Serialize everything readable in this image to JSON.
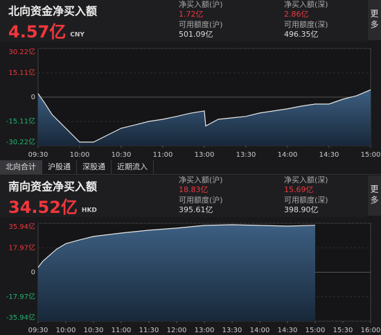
{
  "chart_data": [
    {
      "type": "line",
      "title": "北向资金净买入额",
      "amount": "4.57亿",
      "currency": "CNY",
      "more": "更多",
      "stats": [
        {
          "label": "净买入额(沪)",
          "value": "1.72亿"
        },
        {
          "label": "可用额度(沪)",
          "value": "501.09亿"
        },
        {
          "label": "净买入额(深)",
          "value": "2.86亿"
        },
        {
          "label": "可用额度(深)",
          "value": "496.35亿"
        }
      ],
      "x": [
        0,
        5,
        10,
        20,
        30,
        40,
        50,
        60,
        70,
        80,
        90,
        100,
        110,
        120,
        121,
        130,
        140,
        150,
        160,
        170,
        180,
        190,
        200,
        210,
        220,
        230,
        240
      ],
      "values": [
        2.2,
        -4,
        -10.8,
        -19.4,
        -28,
        -28,
        -23.7,
        -19.4,
        -17.3,
        -15.1,
        -13.8,
        -12,
        -10,
        -8.6,
        -18,
        -13.8,
        -12.9,
        -12,
        -9.9,
        -8.6,
        -7.3,
        -5.6,
        -4.3,
        -4.3,
        -1.3,
        0.9,
        4.57
      ],
      "color": "#e8e8e8",
      "xlim": [
        0,
        240
      ],
      "xticks": [
        {
          "value": 0,
          "label": "09:30"
        },
        {
          "value": 30,
          "label": "10:00"
        },
        {
          "value": 60,
          "label": "10:30"
        },
        {
          "value": 90,
          "label": "11:00"
        },
        {
          "value": 120,
          "label": "13:00"
        },
        {
          "value": 150,
          "label": "13:30"
        },
        {
          "value": 180,
          "label": "14:00"
        },
        {
          "value": 210,
          "label": "14:30"
        },
        {
          "value": 240,
          "label": "15:00"
        }
      ],
      "ylim": [
        -30.22,
        30.22
      ],
      "yticks": [
        {
          "value": 30.22,
          "label": "30.22亿"
        },
        {
          "value": 15.11,
          "label": "15.11亿"
        },
        0,
        {
          "value": -15.11,
          "label": "-15.11亿"
        },
        {
          "value": -30.22,
          "label": "-30.22亿"
        }
      ],
      "grid": true
    },
    {
      "type": "line",
      "title": "南向资金净买入额",
      "amount": "34.52亿",
      "currency": "HKD",
      "more": "更多",
      "stats": [
        {
          "label": "净买入额(沪)",
          "value": "18.83亿"
        },
        {
          "label": "可用额度(沪)",
          "value": "395.61亿"
        },
        {
          "label": "净买入额(深)",
          "value": "15.69亿"
        },
        {
          "label": "可用额度(深)",
          "value": "398.90亿"
        }
      ],
      "x": [
        0,
        5,
        10,
        20,
        30,
        45,
        60,
        90,
        120,
        150,
        180,
        210,
        240,
        270,
        300
      ],
      "values": [
        3.5,
        8,
        11,
        17,
        21,
        23.8,
        26.3,
        28.8,
        30.9,
        32.4,
        34.4,
        34.9,
        34.4,
        33.9,
        34.52
      ],
      "color": "#e8e8e8",
      "xlim": [
        0,
        360
      ],
      "xticks": [
        {
          "value": 0,
          "label": "09:30"
        },
        {
          "value": 30,
          "label": "10:00"
        },
        {
          "value": 60,
          "label": "10:30"
        },
        {
          "value": 90,
          "label": "11:00"
        },
        {
          "value": 120,
          "label": "11:30"
        },
        {
          "value": 150,
          "label": "12:00"
        },
        {
          "value": 180,
          "label": "13:00"
        },
        {
          "value": 210,
          "label": "13:30"
        },
        {
          "value": 240,
          "label": "14:00"
        },
        {
          "value": 270,
          "label": "14:30"
        },
        {
          "value": 300,
          "label": "15:00"
        },
        {
          "value": 330,
          "label": "15:30"
        },
        {
          "value": 360,
          "label": "16:00"
        }
      ],
      "ylim": [
        -35.94,
        35.94
      ],
      "yticks": [
        {
          "value": 35.94,
          "label": "35.94亿"
        },
        {
          "value": 17.97,
          "label": "17.97亿"
        },
        0,
        {
          "value": -17.97,
          "label": "-17.97亿"
        },
        {
          "value": -35.94,
          "label": "-35.94亿"
        }
      ],
      "grid": true
    }
  ],
  "tabs": [
    "北向合计",
    "沪股通",
    "深股通",
    "近期流入"
  ]
}
